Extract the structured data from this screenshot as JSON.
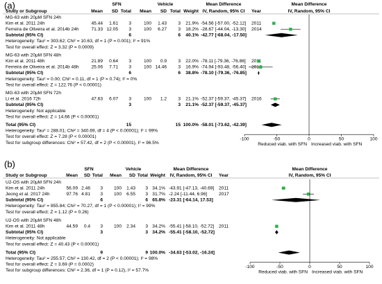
{
  "panels": [
    {
      "label": "(a)",
      "spanners": [
        "SFN",
        "Vehicle",
        "Mean Difference",
        "Mean Difference"
      ],
      "columns": [
        "Study or Subgroup",
        "Mean",
        "SD",
        "Total",
        "Mean",
        "SD",
        "Total",
        "Weight",
        "IV, Random, 95% CI",
        "Year",
        "IV, Random, 95% CI"
      ],
      "groups": [
        {
          "title": "MG-63 with 20μM SFN 24h",
          "studies": [
            {
              "name": "Kim et al. 2011 24h",
              "cells": [
                "45.44",
                "1.61",
                "3",
                "100",
                "1.43",
                "3",
                "21.9%",
                "-54.56 [-57.00, -52.12]",
                "2011"
              ],
              "md": -54.56,
              "ci": [
                -57.0,
                -52.12
              ]
            },
            {
              "name": "Ferreira de Oliveira et al. 2014b 24h",
              "cells": [
                "71.33",
                "12.05",
                "3",
                "100",
                "6.27",
                "3",
                "18.2%",
                "-28.67 [-44.04, -13.30]",
                "2014"
              ],
              "md": -28.67,
              "ci": [
                -44.04,
                -13.3
              ]
            }
          ],
          "subtotal": {
            "name": "Subtotal (95% CI)",
            "cells": [
              "6",
              "6",
              "40.1%",
              "-42.77 [-68.04, -17.50]"
            ],
            "md": -42.77,
            "ci": [
              -68.04,
              -17.5
            ]
          },
          "notes": [
            "Heterogeneity: Tau² = 303.62; Chi² = 10.63, df = 1 (P = 0.001); I² = 91%",
            "Test for overall effect: Z = 3.32 (P = 0.0009)"
          ]
        },
        {
          "title": "MG-63 with 20μM SFN 48h",
          "studies": [
            {
              "name": "Kim et al. 2011 48h",
              "cells": [
                "21.89",
                "0.64",
                "3",
                "100",
                "0.9",
                "3",
                "22.0%",
                "-78.11 [-79.36, -76.86]",
                "2011"
              ],
              "md": -78.11,
              "ci": [
                -79.36,
                -76.86
              ]
            },
            {
              "name": "Ferreira de Oliveira et al. 2014b 48h",
              "cells": [
                "25.06",
                "7.71",
                "3",
                "100",
                "14.46",
                "3",
                "16.9%",
                "-74.94 [-93.48, -56.40]",
                "2014"
              ],
              "md": -74.94,
              "ci": [
                -93.48,
                -56.4
              ]
            }
          ],
          "subtotal": {
            "name": "Subtotal (95% CI)",
            "cells": [
              "6",
              "6",
              "38.8%",
              "-78.10 [-79.36, -76.85]"
            ],
            "md": -78.1,
            "ci": [
              -79.36,
              -76.85
            ]
          },
          "notes": [
            "Heterogeneity: Tau² = 0.00; Chi² = 0.11, df = 1 (P = 0.74); I² = 0%",
            "Test for overall effect: Z = 122.76 (P < 0.00001)"
          ]
        },
        {
          "title": "MG-63 with 20μM SFN 72h",
          "studies": [
            {
              "name": "Li et al. 2016 72h",
              "cells": [
                "47.63",
                "6.07",
                "3",
                "100",
                "1.2",
                "3",
                "21.1%",
                "-52.37 [-59.37, -45.37]",
                "2016"
              ],
              "md": -52.37,
              "ci": [
                -59.37,
                -45.37
              ]
            }
          ],
          "subtotal": {
            "name": "Subtotal (95% CI)",
            "cells": [
              "3",
              "3",
              "21.1%",
              "-52.37 [-59.37, -45.37]"
            ],
            "md": -52.37,
            "ci": [
              -59.37,
              -45.37
            ]
          },
          "notes": [
            "Heterogeneity: Not applicable",
            "Test for overall effect: Z = 14.66 (P < 0.00001)"
          ]
        }
      ],
      "total": {
        "name": "Total (95% CI)",
        "cells": [
          "15",
          "15",
          "100.0%",
          "-58.01 [-73.62, -42.39]"
        ],
        "md": -58.01,
        "ci": [
          -73.62,
          -42.39
        ]
      },
      "notes": [
        "Heterogeneity: Tau² = 288.01; Chi² = 340.69, df = 4 (P < 0.00001); I² = 99%",
        "Test for overall effect: Z = 7.28 (P < 0.00001)",
        "Test for subgroup differences: Chi² = 57.42, df = 2 (P < 0.00001), I² = 96.5%"
      ],
      "axis": {
        "xlim": [
          -100,
          100
        ],
        "xticks": [
          -100,
          -50,
          0,
          50,
          100
        ],
        "left_label": "Reduced viab. with SFN",
        "right_label": "Increased viab. with SFN"
      }
    },
    {
      "label": "(b)",
      "spanners": [
        "SFN",
        "Vehicle",
        "Mean Difference",
        "Mean Difference"
      ],
      "columns": [
        "Study or Subgroup",
        "Mean",
        "SD",
        "Total",
        "Mean",
        "SD",
        "Total",
        "Weight",
        "IV, Random, 95% CI",
        "Year",
        "IV, Random, 95% CI"
      ],
      "groups": [
        {
          "title": "U2-OS with 20μM SFN 24h",
          "studies": [
            {
              "name": "Kim et al. 2011 24h",
              "cells": [
                "56.09",
                "2.46",
                "3",
                "100",
                "1.43",
                "3",
                "34.1%",
                "-43.91 [-47.13, -40.69]",
                "2011"
              ],
              "md": -43.91,
              "ci": [
                -47.13,
                -40.69
              ]
            },
            {
              "name": "Jeong et al. 2017 24h",
              "cells": [
                "97.76",
                "4.81",
                "3",
                "100",
                "6.55",
                "3",
                "31.7%",
                "-2.24 [-11.44, 6.96]",
                "2017"
              ],
              "md": -2.24,
              "ci": [
                -11.44,
                6.96
              ]
            }
          ],
          "subtotal": {
            "name": "Subtotal (95% CI)",
            "cells": [
              "6",
              "6",
              "65.8%",
              "-23.31 [-64.14, 17.53]"
            ],
            "md": -23.31,
            "ci": [
              -64.14,
              17.53
            ]
          },
          "notes": [
            "Heterogeneity: Tau² = 855.84; Chi² = 70.27, df = 1 (P < 0.00001); I² = 99%",
            "Test for overall effect: Z = 1.12 (P = 0.26)"
          ]
        },
        {
          "title": "U2-OS with 20μM SFN 48h",
          "studies": [
            {
              "name": "Kim et al. 2011 48h",
              "cells": [
                "44.59",
                "0.4",
                "3",
                "100",
                "2.34",
                "3",
                "34.2%",
                "-55.41 [-58.10, -52.72]",
                "2011"
              ],
              "md": -55.41,
              "ci": [
                -58.1,
                -52.72
              ]
            }
          ],
          "subtotal": {
            "name": "Subtotal (95% CI)",
            "cells": [
              "3",
              "3",
              "34.2%",
              "-55.41 [-58.10, -52.72]"
            ],
            "md": -55.41,
            "ci": [
              -58.1,
              -52.72
            ]
          },
          "notes": [
            "Heterogeneity: Not applicable",
            "Test for overall effect: Z = 40.43 (P < 0.00001)"
          ]
        }
      ],
      "total": {
        "name": "Total (95% CI)",
        "cells": [
          "9",
          "9",
          "100.0%",
          "-34.63 [-53.02, -16.24]"
        ],
        "md": -34.63,
        "ci": [
          -53.02,
          -16.24
        ]
      },
      "notes": [
        "Heterogeneity: Tau² = 255.57; Chi² = 130.42, df = 2 (P < 0.00001); I² = 98%",
        "Test for overall effect: Z = 3.69 (P = 0.0002)",
        "Test for subgroup differences: Chi² = 2.36, df = 1 (P = 0.12), I² = 57.7%"
      ],
      "axis": {
        "xlim": [
          -100,
          100
        ],
        "xticks": [
          -100,
          -50,
          0,
          50,
          100
        ],
        "left_label": "Reduced viab. with SFN",
        "right_label": "Increased viab. with SFN"
      }
    }
  ]
}
